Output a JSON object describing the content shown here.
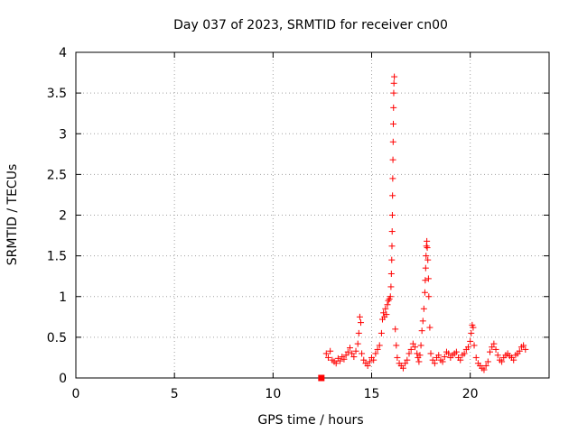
{
  "chart_data": {
    "type": "scatter",
    "title": "Day 037 of 2023, SRMTID for receiver cn00",
    "xlabel": "GPS time / hours",
    "ylabel": "SRMTID / TECUs",
    "xlim": [
      0,
      24
    ],
    "ylim": [
      0,
      4
    ],
    "xticks": [
      0,
      5,
      10,
      15,
      20
    ],
    "xtick_labels": [
      "0",
      "5",
      "10",
      "15",
      "20"
    ],
    "yticks": [
      0,
      0.5,
      1,
      1.5,
      2,
      2.5,
      3,
      3.5,
      4
    ],
    "ytick_labels": [
      "0",
      "0.5",
      "1",
      "1.5",
      "2",
      "2.5",
      "3",
      "3.5",
      "4"
    ],
    "grid": true,
    "marker_color": "#ff0000",
    "series": [
      {
        "name": "SRMTID",
        "marker": "plus",
        "points": [
          [
            12.7,
            0.3
          ],
          [
            12.8,
            0.25
          ],
          [
            12.9,
            0.33
          ],
          [
            13.0,
            0.22
          ],
          [
            13.1,
            0.2
          ],
          [
            13.2,
            0.18
          ],
          [
            13.3,
            0.24
          ],
          [
            13.4,
            0.21
          ],
          [
            13.5,
            0.26
          ],
          [
            13.6,
            0.23
          ],
          [
            13.7,
            0.28
          ],
          [
            13.8,
            0.32
          ],
          [
            13.9,
            0.37
          ],
          [
            14.0,
            0.3
          ],
          [
            14.1,
            0.26
          ],
          [
            14.2,
            0.33
          ],
          [
            14.3,
            0.42
          ],
          [
            14.35,
            0.55
          ],
          [
            14.4,
            0.75
          ],
          [
            14.45,
            0.68
          ],
          [
            14.5,
            0.3
          ],
          [
            14.6,
            0.22
          ],
          [
            14.7,
            0.18
          ],
          [
            14.8,
            0.15
          ],
          [
            14.9,
            0.2
          ],
          [
            15.0,
            0.25
          ],
          [
            15.1,
            0.22
          ],
          [
            15.2,
            0.3
          ],
          [
            15.3,
            0.35
          ],
          [
            15.4,
            0.4
          ],
          [
            15.5,
            0.55
          ],
          [
            15.55,
            0.72
          ],
          [
            15.6,
            0.8
          ],
          [
            15.65,
            0.75
          ],
          [
            15.7,
            0.85
          ],
          [
            15.75,
            0.78
          ],
          [
            15.8,
            0.9
          ],
          [
            15.85,
            0.95
          ],
          [
            15.9,
            0.97
          ],
          [
            15.95,
            1.0
          ],
          [
            15.98,
            1.12
          ],
          [
            16.0,
            1.28
          ],
          [
            16.02,
            1.45
          ],
          [
            16.03,
            1.62
          ],
          [
            16.04,
            1.8
          ],
          [
            16.05,
            2.0
          ],
          [
            16.06,
            2.24
          ],
          [
            16.07,
            2.45
          ],
          [
            16.08,
            2.68
          ],
          [
            16.09,
            2.9
          ],
          [
            16.1,
            3.12
          ],
          [
            16.11,
            3.32
          ],
          [
            16.12,
            3.5
          ],
          [
            16.13,
            3.62
          ],
          [
            16.15,
            3.7
          ],
          [
            16.2,
            0.6
          ],
          [
            16.25,
            0.4
          ],
          [
            16.3,
            0.25
          ],
          [
            16.4,
            0.18
          ],
          [
            16.5,
            0.15
          ],
          [
            16.6,
            0.12
          ],
          [
            16.7,
            0.18
          ],
          [
            16.8,
            0.22
          ],
          [
            16.9,
            0.3
          ],
          [
            17.0,
            0.35
          ],
          [
            17.1,
            0.42
          ],
          [
            17.2,
            0.38
          ],
          [
            17.3,
            0.3
          ],
          [
            17.35,
            0.25
          ],
          [
            17.4,
            0.2
          ],
          [
            17.45,
            0.28
          ],
          [
            17.5,
            0.4
          ],
          [
            17.55,
            0.58
          ],
          [
            17.6,
            0.7
          ],
          [
            17.65,
            0.85
          ],
          [
            17.7,
            1.05
          ],
          [
            17.72,
            1.2
          ],
          [
            17.74,
            1.35
          ],
          [
            17.76,
            1.5
          ],
          [
            17.78,
            1.62
          ],
          [
            17.8,
            1.68
          ],
          [
            17.82,
            1.6
          ],
          [
            17.85,
            1.45
          ],
          [
            17.88,
            1.22
          ],
          [
            17.9,
            1.0
          ],
          [
            17.95,
            0.62
          ],
          [
            18.0,
            0.3
          ],
          [
            18.1,
            0.22
          ],
          [
            18.2,
            0.18
          ],
          [
            18.3,
            0.25
          ],
          [
            18.4,
            0.28
          ],
          [
            18.5,
            0.22
          ],
          [
            18.6,
            0.2
          ],
          [
            18.7,
            0.26
          ],
          [
            18.8,
            0.32
          ],
          [
            18.9,
            0.3
          ],
          [
            19.0,
            0.25
          ],
          [
            19.1,
            0.28
          ],
          [
            19.2,
            0.3
          ],
          [
            19.3,
            0.32
          ],
          [
            19.4,
            0.25
          ],
          [
            19.5,
            0.22
          ],
          [
            19.6,
            0.28
          ],
          [
            19.7,
            0.3
          ],
          [
            19.8,
            0.35
          ],
          [
            19.9,
            0.38
          ],
          [
            20.0,
            0.45
          ],
          [
            20.05,
            0.55
          ],
          [
            20.1,
            0.65
          ],
          [
            20.15,
            0.62
          ],
          [
            20.2,
            0.4
          ],
          [
            20.3,
            0.25
          ],
          [
            20.4,
            0.18
          ],
          [
            20.5,
            0.15
          ],
          [
            20.6,
            0.12
          ],
          [
            20.7,
            0.1
          ],
          [
            20.8,
            0.15
          ],
          [
            20.9,
            0.2
          ],
          [
            21.0,
            0.32
          ],
          [
            21.1,
            0.38
          ],
          [
            21.2,
            0.42
          ],
          [
            21.3,
            0.35
          ],
          [
            21.4,
            0.28
          ],
          [
            21.5,
            0.22
          ],
          [
            21.6,
            0.2
          ],
          [
            21.7,
            0.25
          ],
          [
            21.8,
            0.28
          ],
          [
            21.9,
            0.3
          ],
          [
            22.0,
            0.27
          ],
          [
            22.1,
            0.25
          ],
          [
            22.2,
            0.22
          ],
          [
            22.3,
            0.28
          ],
          [
            22.4,
            0.3
          ],
          [
            22.5,
            0.33
          ],
          [
            22.6,
            0.38
          ],
          [
            22.7,
            0.4
          ],
          [
            22.8,
            0.35
          ]
        ]
      },
      {
        "name": "start marker",
        "marker": "square",
        "points": [
          [
            12.45,
            0.0
          ]
        ]
      }
    ]
  }
}
